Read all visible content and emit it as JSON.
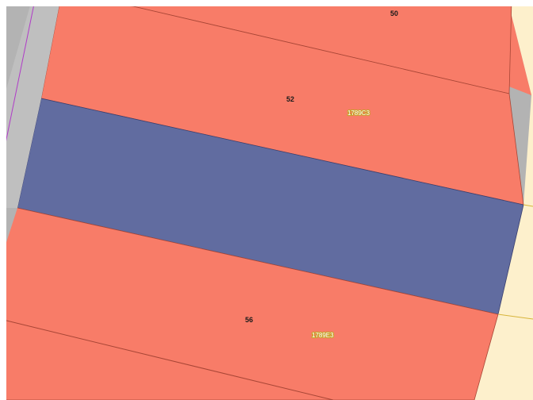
{
  "map": {
    "colors": {
      "residential_lot": "#f87c68",
      "selected_lot": "#616ca0",
      "road": "#b3b3b3",
      "adjacent_zone": "#fdf0cc",
      "lot_boundary": "#a84636",
      "boundary_line": "#b03cc8",
      "label_halo": "#c9a02a"
    },
    "lots": {
      "lot_50": {
        "number": "50"
      },
      "lot_52": {
        "number": "52",
        "parcel_id": "1789C3"
      },
      "lot_54": {
        "selected": true
      },
      "lot_56": {
        "number": "56",
        "parcel_id": "1789E3"
      }
    }
  }
}
